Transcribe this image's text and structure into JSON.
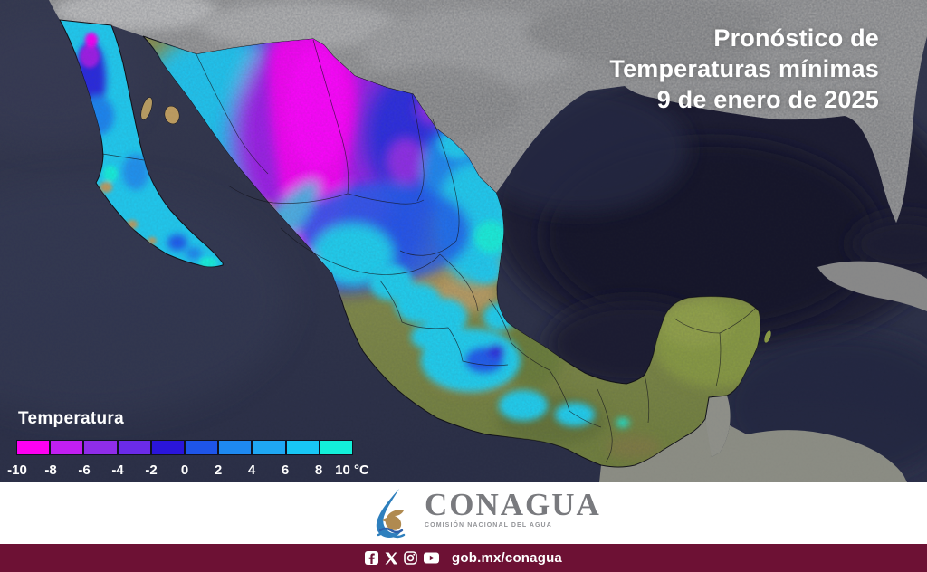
{
  "title": {
    "line1": "Pronóstico de",
    "line2": "Temperaturas mínimas",
    "line3": "9 de enero de 2025"
  },
  "legend": {
    "heading": "Temperatura",
    "unit": "°C",
    "tick_labels": [
      "-10",
      "-8",
      "-6",
      "-4",
      "-2",
      "0",
      "2",
      "4",
      "6",
      "8",
      "10 °C"
    ],
    "band_colors": [
      "#FE00F2",
      "#C11FF2",
      "#8F2DE9",
      "#6B2BE9",
      "#2A15DB",
      "#1E55E9",
      "#1E89F1",
      "#1FA7F3",
      "#18C7F5",
      "#13EFD9"
    ],
    "band_range_celsius": [
      -10,
      10
    ]
  },
  "logo": {
    "name": "CONAGUA",
    "subtitle": "COMISIÓN NACIONAL DEL AGUA"
  },
  "footer": {
    "link_text": "gob.mx/conagua",
    "social_icons": [
      "facebook-icon",
      "x-icon",
      "instagram-icon",
      "youtube-icon"
    ]
  },
  "colors": {
    "ocean": "#2C3048",
    "gulf_deep": "#171B2D",
    "us_land": "#8E8E8E",
    "mexico_terrain_green": "#75843E",
    "terrain_tan": "#B5995F",
    "footer_bar": "#6D1134",
    "logo_gray": "#797A7E",
    "logo_blue": "#2E7FBD",
    "logo_eagle_tan": "#B08A50"
  }
}
